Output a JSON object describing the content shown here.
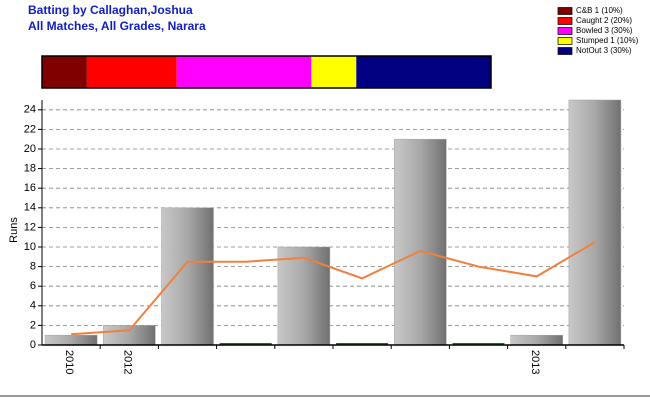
{
  "chart_data": {
    "type": "bar",
    "title": "Batting by Callaghan,Joshua",
    "subtitle": "All Matches, All Grades, Narara",
    "y_label": "Runs",
    "dismissals": [
      {
        "name": "C&B 1 (10%)",
        "color": "#800000",
        "value": 10
      },
      {
        "name": "Caught 2 (20%)",
        "color": "#ff0000",
        "value": 20
      },
      {
        "name": "Bowled 3 (30%)",
        "color": "#ff00ff",
        "value": 30
      },
      {
        "name": "Stumped 1 (10%)",
        "color": "#ffff00",
        "value": 10
      },
      {
        "name": "NotOut 3 (30%)",
        "color": "#000080",
        "value": 30
      }
    ],
    "categories": [
      "2010",
      "2012",
      null,
      null,
      null,
      null,
      null,
      null,
      "2013",
      null
    ],
    "series": [
      {
        "type": "bar",
        "color": "#a0a0a0",
        "zero_color": "#008000",
        "values": [
          1,
          2,
          14,
          0,
          10,
          0,
          21,
          0,
          1,
          25
        ]
      },
      {
        "type": "line",
        "color": "#f08040",
        "values": [
          1.1,
          1.5,
          8.5,
          8.5,
          8.9,
          6.8,
          9.6,
          8.0,
          7.0,
          10.5
        ]
      }
    ],
    "ylim": [
      0,
      25
    ],
    "yticks": [
      0,
      2,
      4,
      6,
      8,
      10,
      12,
      14,
      16,
      18,
      20,
      22,
      24
    ],
    "grid": true
  }
}
